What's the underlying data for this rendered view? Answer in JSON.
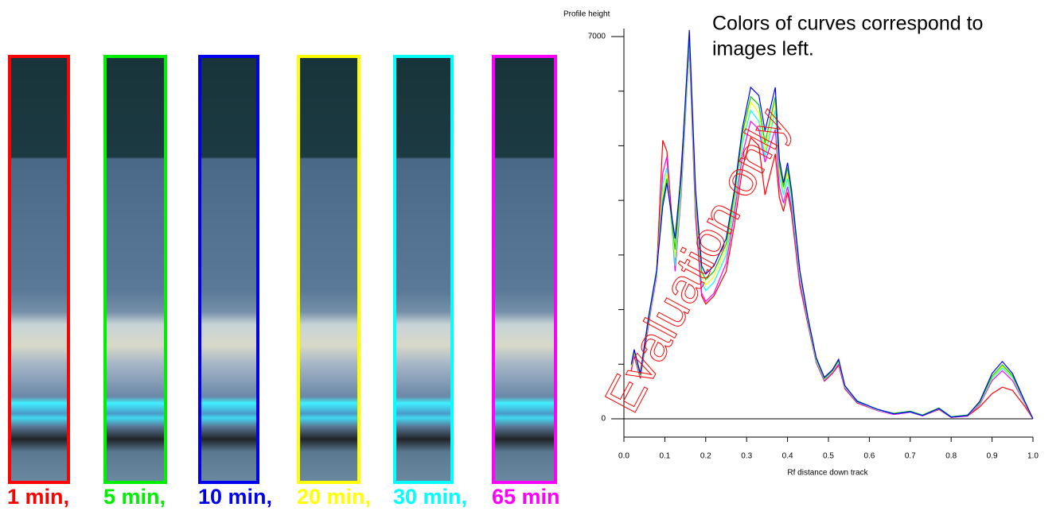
{
  "plates": [
    {
      "label": "1 min,",
      "color": "#ff0000"
    },
    {
      "label": "5 min,",
      "color": "#00ee00"
    },
    {
      "label": "10 min,",
      "color": "#0000ee"
    },
    {
      "label": "20 min,",
      "color": "#ffff00"
    },
    {
      "label": "30 min,",
      "color": "#00ffff"
    },
    {
      "label": "65 min",
      "color": "#ff00ff"
    }
  ],
  "chart_data": {
    "type": "line",
    "title": "Profile height",
    "x_label": "Rf distance down track",
    "annotation": [
      "Colors of curves correspond to",
      "images left."
    ],
    "watermark": "Evaluation only",
    "xlim": [
      0,
      1
    ],
    "ylim": [
      0,
      7000
    ],
    "xticks": [
      {
        "value": 0,
        "label": "0.0"
      },
      0.1,
      0.2,
      0.3,
      0.4,
      0.5,
      0.6,
      0.7,
      0.8,
      0.9,
      {
        "value": 1,
        "label": "1.0"
      }
    ],
    "yticks": [
      0,
      7000
    ],
    "yminorticks": [
      1000,
      2000,
      3000,
      4000,
      5000,
      6000
    ],
    "x": [
      0.018,
      0.025,
      0.04,
      0.06,
      0.08,
      0.095,
      0.105,
      0.125,
      0.14,
      0.16,
      0.175,
      0.19,
      0.2,
      0.22,
      0.25,
      0.27,
      0.29,
      0.31,
      0.33,
      0.345,
      0.37,
      0.38,
      0.39,
      0.4,
      0.41,
      0.43,
      0.45,
      0.47,
      0.49,
      0.51,
      0.525,
      0.54,
      0.57,
      0.62,
      0.66,
      0.7,
      0.73,
      0.77,
      0.8,
      0.84,
      0.87,
      0.9,
      0.925,
      0.95,
      0.98,
      1.0
    ],
    "series": [
      {
        "color": "#ff0000",
        "values": [
          880,
          1150,
          740,
          1700,
          2700,
          5100,
          4900,
          2900,
          4600,
          6800,
          3700,
          2250,
          2100,
          2250,
          2700,
          3550,
          4600,
          5150,
          5000,
          4100,
          4850,
          4050,
          3800,
          4150,
          3750,
          2450,
          1720,
          1030,
          690,
          830,
          980,
          550,
          290,
          150,
          80,
          120,
          55,
          170,
          25,
          50,
          220,
          460,
          580,
          520,
          230,
          0
        ]
      },
      {
        "color": "#ff00ff",
        "values": [
          900,
          1180,
          760,
          1720,
          2600,
          4500,
          4800,
          2700,
          4100,
          6850,
          3800,
          2300,
          2150,
          2300,
          2850,
          3750,
          4850,
          5450,
          5300,
          4700,
          5300,
          4250,
          3950,
          4250,
          3850,
          2500,
          1750,
          1040,
          700,
          840,
          1000,
          560,
          300,
          150,
          80,
          120,
          55,
          180,
          25,
          55,
          260,
          700,
          880,
          700,
          280,
          0
        ]
      },
      {
        "color": "#00ffff",
        "values": [
          950,
          1210,
          780,
          1760,
          2650,
          4300,
          4600,
          2800,
          4200,
          6900,
          3950,
          2500,
          2350,
          2500,
          3000,
          3900,
          5050,
          5650,
          5450,
          4800,
          5650,
          4450,
          4100,
          4400,
          3950,
          2600,
          1780,
          1060,
          720,
          860,
          1040,
          580,
          310,
          160,
          90,
          125,
          60,
          185,
          30,
          60,
          280,
          740,
          930,
          750,
          290,
          0
        ]
      },
      {
        "color": "#ffff00",
        "values": [
          960,
          1230,
          790,
          1780,
          2680,
          4150,
          4500,
          2950,
          4300,
          6950,
          4000,
          2600,
          2450,
          2600,
          3100,
          4000,
          5150,
          5800,
          5600,
          4900,
          5800,
          4550,
          4200,
          4500,
          4050,
          2650,
          1800,
          1080,
          730,
          870,
          1050,
          590,
          320,
          165,
          95,
          130,
          65,
          190,
          35,
          65,
          290,
          760,
          960,
          770,
          300,
          0
        ]
      },
      {
        "color": "#00cc00",
        "values": [
          980,
          1250,
          800,
          1800,
          2700,
          4000,
          4400,
          3100,
          4400,
          7000,
          4100,
          2700,
          2550,
          2700,
          3200,
          4100,
          5250,
          5900,
          5750,
          5050,
          5900,
          4650,
          4250,
          4600,
          4100,
          2700,
          1820,
          1100,
          740,
          880,
          1070,
          600,
          330,
          170,
          100,
          140,
          70,
          200,
          40,
          70,
          300,
          780,
          990,
          790,
          310,
          0
        ]
      },
      {
        "color": "#0000ff",
        "values": [
          1000,
          1270,
          830,
          1850,
          2720,
          3890,
          4320,
          3300,
          4500,
          7120,
          4200,
          2800,
          2650,
          2800,
          3300,
          4180,
          5340,
          6070,
          5920,
          5270,
          6070,
          4760,
          4320,
          4690,
          4180,
          2720,
          1850,
          1120,
          760,
          900,
          1090,
          610,
          320,
          175,
          90,
          130,
          60,
          190,
          30,
          60,
          320,
          830,
          1050,
          830,
          320,
          0
        ]
      }
    ]
  }
}
